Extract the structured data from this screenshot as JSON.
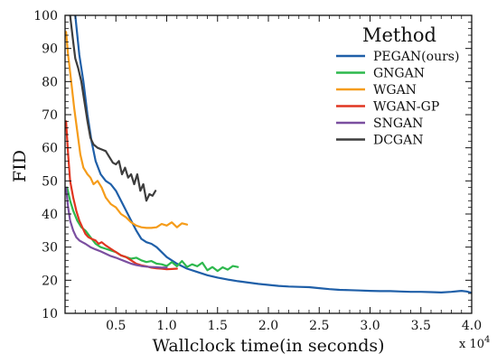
{
  "chart_data": {
    "type": "line",
    "xlabel": "Wallclock time(in seconds)",
    "ylabel": "FID",
    "x_offset_text": "x 10",
    "x_offset_exp": "4",
    "xlim": [
      0,
      4.0
    ],
    "ylim": [
      10,
      100
    ],
    "x_ticks": [
      0.5,
      1.0,
      1.5,
      2.0,
      2.5,
      3.0,
      3.5,
      4.0
    ],
    "x_tick_labels": [
      "0.5",
      "1.0",
      "1.5",
      "2.0",
      "2.5",
      "3.0",
      "3.5",
      "4.0"
    ],
    "y_ticks": [
      10,
      20,
      30,
      40,
      50,
      60,
      70,
      80,
      90,
      100
    ],
    "y_tick_labels": [
      "10",
      "20",
      "30",
      "40",
      "50",
      "60",
      "70",
      "80",
      "90",
      "100"
    ],
    "legend_title": "Method",
    "legend_position": "top-right",
    "series": [
      {
        "name": "PEGAN(ours)",
        "color": "#1f5fa8",
        "points": [
          [
            0.1,
            100
          ],
          [
            0.14,
            88
          ],
          [
            0.18,
            80
          ],
          [
            0.22,
            70
          ],
          [
            0.26,
            62
          ],
          [
            0.3,
            56
          ],
          [
            0.35,
            52
          ],
          [
            0.4,
            50
          ],
          [
            0.45,
            49
          ],
          [
            0.5,
            47
          ],
          [
            0.55,
            44
          ],
          [
            0.6,
            41
          ],
          [
            0.65,
            38
          ],
          [
            0.7,
            35
          ],
          [
            0.75,
            32.5
          ],
          [
            0.8,
            31.5
          ],
          [
            0.85,
            31
          ],
          [
            0.9,
            30
          ],
          [
            0.95,
            28.5
          ],
          [
            1.0,
            27
          ],
          [
            1.1,
            25
          ],
          [
            1.2,
            23.5
          ],
          [
            1.3,
            22.5
          ],
          [
            1.4,
            21.5
          ],
          [
            1.5,
            20.8
          ],
          [
            1.6,
            20.2
          ],
          [
            1.7,
            19.7
          ],
          [
            1.8,
            19.3
          ],
          [
            1.9,
            18.9
          ],
          [
            2.0,
            18.6
          ],
          [
            2.1,
            18.3
          ],
          [
            2.2,
            18.1
          ],
          [
            2.3,
            18.0
          ],
          [
            2.4,
            17.9
          ],
          [
            2.5,
            17.6
          ],
          [
            2.6,
            17.3
          ],
          [
            2.7,
            17.1
          ],
          [
            2.8,
            17.0
          ],
          [
            2.9,
            16.9
          ],
          [
            3.0,
            16.8
          ],
          [
            3.1,
            16.7
          ],
          [
            3.2,
            16.7
          ],
          [
            3.3,
            16.6
          ],
          [
            3.4,
            16.5
          ],
          [
            3.5,
            16.5
          ],
          [
            3.6,
            16.4
          ],
          [
            3.7,
            16.3
          ],
          [
            3.8,
            16.5
          ],
          [
            3.9,
            16.8
          ],
          [
            3.95,
            16.6
          ],
          [
            4.0,
            16.2
          ]
        ]
      },
      {
        "name": "GNGAN",
        "color": "#2db84d",
        "points": [
          [
            0.02,
            48
          ],
          [
            0.05,
            44
          ],
          [
            0.08,
            41
          ],
          [
            0.12,
            38
          ],
          [
            0.16,
            36
          ],
          [
            0.2,
            35
          ],
          [
            0.25,
            33
          ],
          [
            0.3,
            31
          ],
          [
            0.35,
            30
          ],
          [
            0.4,
            29.5
          ],
          [
            0.45,
            29
          ],
          [
            0.5,
            28.5
          ],
          [
            0.55,
            27.5
          ],
          [
            0.6,
            27
          ],
          [
            0.65,
            26.5
          ],
          [
            0.7,
            26.8
          ],
          [
            0.75,
            26
          ],
          [
            0.8,
            25.5
          ],
          [
            0.85,
            25.8
          ],
          [
            0.9,
            25
          ],
          [
            0.95,
            24.8
          ],
          [
            1.0,
            24.3
          ],
          [
            1.05,
            25.5
          ],
          [
            1.1,
            24.2
          ],
          [
            1.15,
            25.8
          ],
          [
            1.2,
            24.0
          ],
          [
            1.25,
            24.8
          ],
          [
            1.3,
            24.2
          ],
          [
            1.35,
            25.3
          ],
          [
            1.4,
            23.0
          ],
          [
            1.45,
            24.0
          ],
          [
            1.5,
            22.8
          ],
          [
            1.55,
            23.9
          ],
          [
            1.6,
            23.2
          ],
          [
            1.65,
            24.3
          ],
          [
            1.7,
            24.0
          ]
        ]
      },
      {
        "name": "WGAN",
        "color": "#f59c1a",
        "points": [
          [
            0.01,
            95
          ],
          [
            0.03,
            88
          ],
          [
            0.06,
            80
          ],
          [
            0.09,
            72
          ],
          [
            0.12,
            65
          ],
          [
            0.15,
            58
          ],
          [
            0.18,
            54
          ],
          [
            0.22,
            52
          ],
          [
            0.25,
            51
          ],
          [
            0.28,
            49
          ],
          [
            0.32,
            50
          ],
          [
            0.36,
            48
          ],
          [
            0.4,
            45
          ],
          [
            0.45,
            43
          ],
          [
            0.5,
            42
          ],
          [
            0.55,
            40
          ],
          [
            0.6,
            39
          ],
          [
            0.65,
            37.5
          ],
          [
            0.7,
            36.5
          ],
          [
            0.75,
            36
          ],
          [
            0.8,
            35.8
          ],
          [
            0.85,
            35.8
          ],
          [
            0.9,
            36
          ],
          [
            0.95,
            37
          ],
          [
            1.0,
            36.5
          ],
          [
            1.05,
            37.5
          ],
          [
            1.1,
            36
          ],
          [
            1.15,
            37.2
          ],
          [
            1.2,
            36.8
          ]
        ]
      },
      {
        "name": "WGAN-GP",
        "color": "#e03520",
        "points": [
          [
            0.01,
            68
          ],
          [
            0.03,
            58
          ],
          [
            0.05,
            50
          ],
          [
            0.08,
            45
          ],
          [
            0.11,
            41
          ],
          [
            0.14,
            38
          ],
          [
            0.17,
            36
          ],
          [
            0.2,
            34
          ],
          [
            0.23,
            33
          ],
          [
            0.26,
            32.5
          ],
          [
            0.3,
            32
          ],
          [
            0.33,
            31
          ],
          [
            0.36,
            31.5
          ],
          [
            0.4,
            30.5
          ],
          [
            0.45,
            29.5
          ],
          [
            0.5,
            28.5
          ],
          [
            0.55,
            27.5
          ],
          [
            0.6,
            27
          ],
          [
            0.65,
            26
          ],
          [
            0.7,
            25
          ],
          [
            0.75,
            24.5
          ],
          [
            0.8,
            24.2
          ],
          [
            0.85,
            23.8
          ],
          [
            0.9,
            23.6
          ],
          [
            0.95,
            23.5
          ],
          [
            1.0,
            23.3
          ],
          [
            1.05,
            23.4
          ],
          [
            1.1,
            23.5
          ]
        ]
      },
      {
        "name": "SNGAN",
        "color": "#7b4fa0",
        "points": [
          [
            0.01,
            48
          ],
          [
            0.03,
            42
          ],
          [
            0.05,
            38
          ],
          [
            0.08,
            35
          ],
          [
            0.11,
            33
          ],
          [
            0.14,
            32
          ],
          [
            0.17,
            31.5
          ],
          [
            0.2,
            31
          ],
          [
            0.25,
            30
          ],
          [
            0.3,
            29.3
          ],
          [
            0.35,
            28.7
          ],
          [
            0.4,
            28
          ],
          [
            0.45,
            27.3
          ],
          [
            0.5,
            26.8
          ],
          [
            0.55,
            26.2
          ],
          [
            0.6,
            25.6
          ],
          [
            0.65,
            25
          ],
          [
            0.7,
            24.6
          ],
          [
            0.75,
            24.3
          ],
          [
            0.8,
            24.1
          ],
          [
            0.85,
            24
          ],
          [
            0.9,
            23.9
          ],
          [
            0.95,
            23.8
          ],
          [
            1.0,
            23.8
          ]
        ]
      },
      {
        "name": "DCGAN",
        "color": "#3d3d3d",
        "points": [
          [
            0.05,
            100
          ],
          [
            0.08,
            92
          ],
          [
            0.1,
            87
          ],
          [
            0.13,
            84
          ],
          [
            0.16,
            80
          ],
          [
            0.19,
            74
          ],
          [
            0.22,
            68
          ],
          [
            0.25,
            63
          ],
          [
            0.28,
            61
          ],
          [
            0.32,
            60
          ],
          [
            0.36,
            59.5
          ],
          [
            0.4,
            59
          ],
          [
            0.44,
            57
          ],
          [
            0.47,
            55.5
          ],
          [
            0.5,
            55
          ],
          [
            0.53,
            56
          ],
          [
            0.56,
            52
          ],
          [
            0.59,
            54
          ],
          [
            0.62,
            51
          ],
          [
            0.65,
            52
          ],
          [
            0.68,
            49
          ],
          [
            0.71,
            52
          ],
          [
            0.74,
            47
          ],
          [
            0.77,
            49
          ],
          [
            0.8,
            44
          ],
          [
            0.83,
            46
          ],
          [
            0.86,
            45.5
          ],
          [
            0.89,
            47
          ]
        ]
      }
    ]
  }
}
